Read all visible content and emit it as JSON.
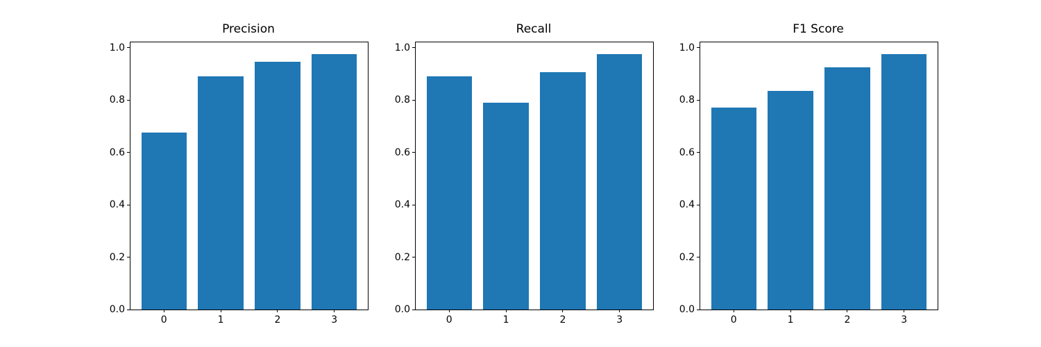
{
  "chart_data": [
    {
      "type": "bar",
      "title": "Precision",
      "categories": [
        "0",
        "1",
        "2",
        "3"
      ],
      "values": [
        0.675,
        0.89,
        0.945,
        0.975
      ],
      "xlabel": "",
      "ylabel": "",
      "ylim": [
        0,
        1.02
      ],
      "xlim": [
        -0.59,
        3.59
      ],
      "yticks": [
        0.0,
        0.2,
        0.4,
        0.6,
        0.8,
        1.0
      ],
      "ytick_labels": [
        "0.0",
        "0.2",
        "0.4",
        "0.6",
        "0.8",
        "1.0"
      ],
      "bar_color": "#1f77b4",
      "bar_width": 0.8,
      "grid": false,
      "legend": null
    },
    {
      "type": "bar",
      "title": "Recall",
      "categories": [
        "0",
        "1",
        "2",
        "3"
      ],
      "values": [
        0.89,
        0.79,
        0.905,
        0.975
      ],
      "xlabel": "",
      "ylabel": "",
      "ylim": [
        0,
        1.02
      ],
      "xlim": [
        -0.59,
        3.59
      ],
      "yticks": [
        0.0,
        0.2,
        0.4,
        0.6,
        0.8,
        1.0
      ],
      "ytick_labels": [
        "0.0",
        "0.2",
        "0.4",
        "0.6",
        "0.8",
        "1.0"
      ],
      "bar_color": "#1f77b4",
      "bar_width": 0.8,
      "grid": false,
      "legend": null
    },
    {
      "type": "bar",
      "title": "F1 Score",
      "categories": [
        "0",
        "1",
        "2",
        "3"
      ],
      "values": [
        0.77,
        0.835,
        0.925,
        0.975
      ],
      "xlabel": "",
      "ylabel": "",
      "ylim": [
        0,
        1.02
      ],
      "xlim": [
        -0.59,
        3.59
      ],
      "yticks": [
        0.0,
        0.2,
        0.4,
        0.6,
        0.8,
        1.0
      ],
      "ytick_labels": [
        "0.0",
        "0.2",
        "0.4",
        "0.6",
        "0.8",
        "1.0"
      ],
      "bar_color": "#1f77b4",
      "bar_width": 0.8,
      "grid": false,
      "legend": null
    }
  ],
  "colors": {
    "bar": "#1f77b4",
    "spine": "#000000",
    "text": "#000000",
    "background": "#ffffff"
  }
}
